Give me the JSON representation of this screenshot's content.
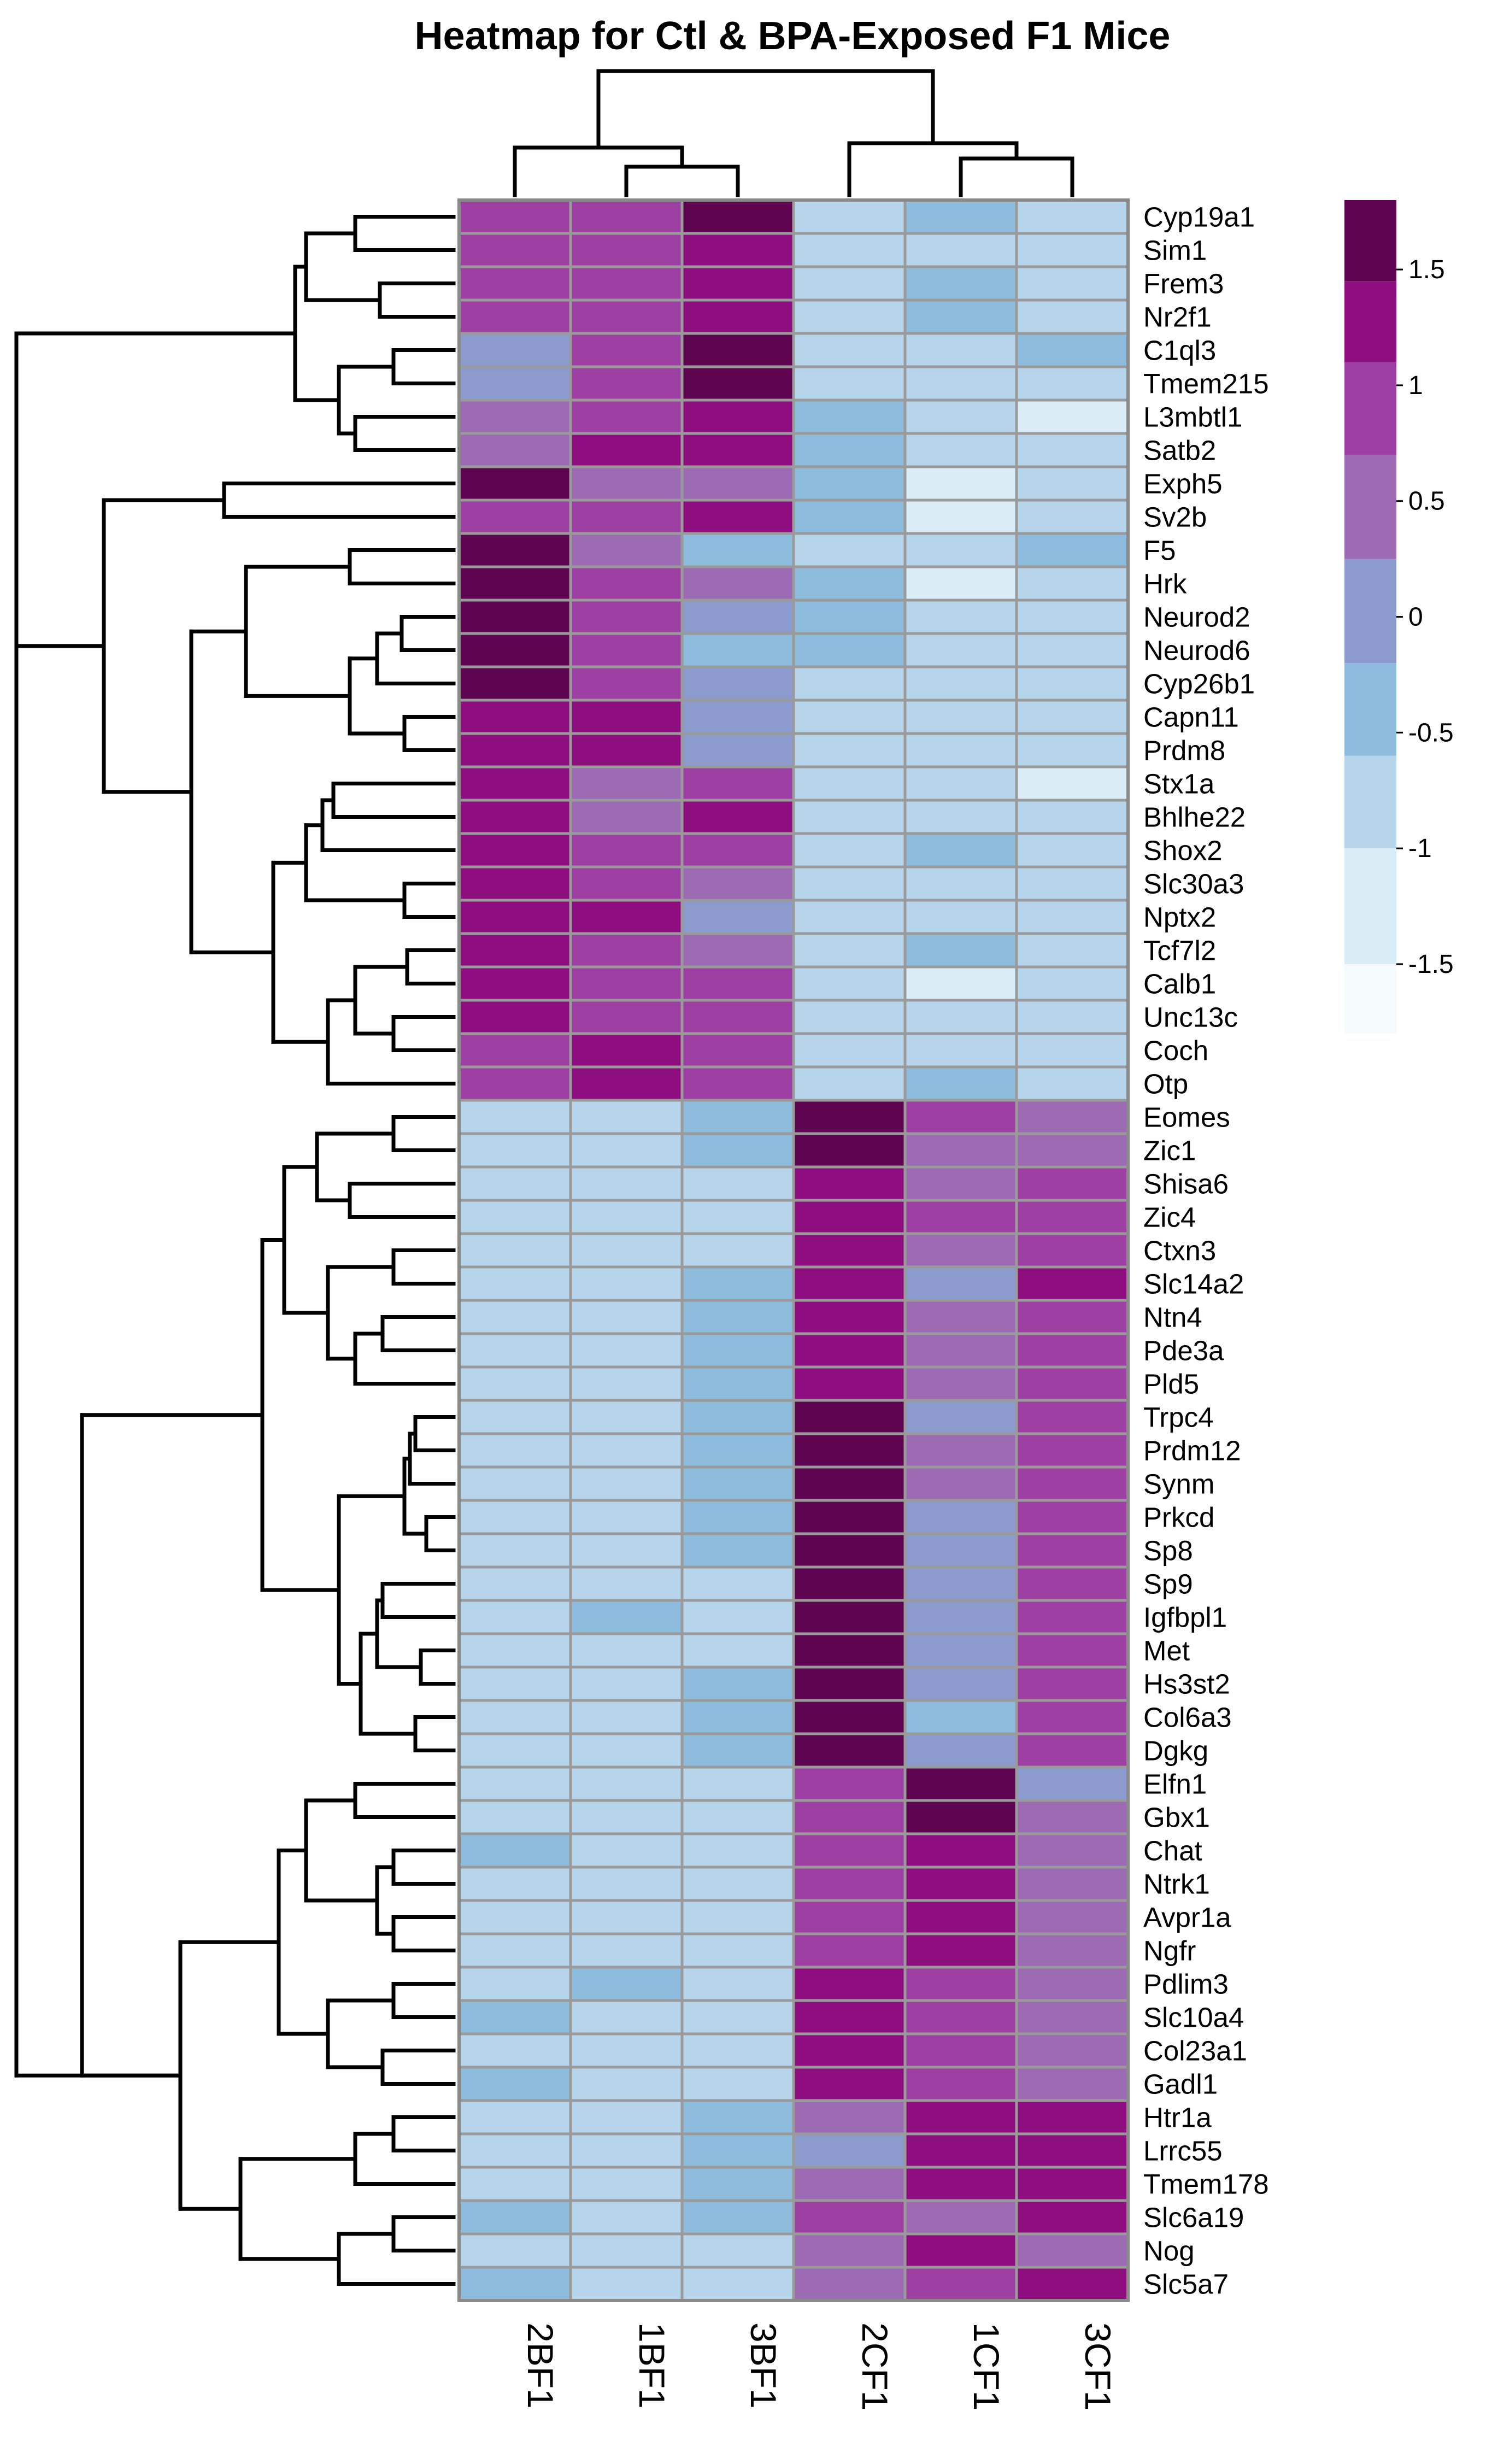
{
  "chart_data": {
    "type": "heatmap",
    "title": "Heatmap for Ctl & BPA-Exposed F1 Mice",
    "columns": [
      "2BF1",
      "1BF1",
      "3BF1",
      "2CF1",
      "1CF1",
      "3CF1"
    ],
    "rows": [
      "Cyp19a1",
      "Sim1",
      "Frem3",
      "Nr2f1",
      "C1ql3",
      "Tmem215",
      "L3mbtl1",
      "Satb2",
      "Exph5",
      "Sv2b",
      "F5",
      "Hrk",
      "Neurod2",
      "Neurod6",
      "Cyp26b1",
      "Capn11",
      "Prdm8",
      "Stx1a",
      "Bhlhe22",
      "Shox2",
      "Slc30a3",
      "Nptx2",
      "Tcf7l2",
      "Calb1",
      "Unc13c",
      "Coch",
      "Otp",
      "Eomes",
      "Zic1",
      "Shisa6",
      "Zic4",
      "Ctxn3",
      "Slc14a2",
      "Ntn4",
      "Pde3a",
      "Pld5",
      "Trpc4",
      "Prdm12",
      "Synm",
      "Prkcd",
      "Sp8",
      "Sp9",
      "Igfbpl1",
      "Met",
      "Hs3st2",
      "Col6a3",
      "Dgkg",
      "Elfn1",
      "Gbx1",
      "Chat",
      "Ntrk1",
      "Avpr1a",
      "Ngfr",
      "Pdlim3",
      "Slc10a4",
      "Col23a1",
      "Gadl1",
      "Htr1a",
      "Lrrc55",
      "Tmem178",
      "Slc6a19",
      "Nog",
      "Slc5a7"
    ],
    "values": [
      [
        1.0,
        0.8,
        1.6,
        -1.0,
        -0.5,
        -0.7
      ],
      [
        1.0,
        0.8,
        1.2,
        -1.0,
        -0.7,
        -0.7
      ],
      [
        1.0,
        0.8,
        1.2,
        -1.0,
        -0.5,
        -0.7
      ],
      [
        1.0,
        0.8,
        1.2,
        -1.0,
        -0.5,
        -0.7
      ],
      [
        0.0,
        0.9,
        1.6,
        -0.9,
        -0.7,
        -0.5
      ],
      [
        0.1,
        0.9,
        1.6,
        -0.7,
        -0.7,
        -0.7
      ],
      [
        0.5,
        0.9,
        1.2,
        -0.5,
        -0.7,
        -1.1
      ],
      [
        0.6,
        1.2,
        1.2,
        -0.5,
        -0.7,
        -0.7
      ],
      [
        1.6,
        0.5,
        0.6,
        -0.5,
        -1.1,
        -0.7
      ],
      [
        1.0,
        0.8,
        1.2,
        -0.5,
        -1.1,
        -0.7
      ],
      [
        1.6,
        0.5,
        -0.4,
        -0.7,
        -0.7,
        -0.5
      ],
      [
        1.6,
        0.9,
        0.5,
        -0.5,
        -1.1,
        -0.7
      ],
      [
        1.6,
        0.9,
        0.1,
        -0.5,
        -0.7,
        -0.7
      ],
      [
        1.6,
        0.9,
        -0.4,
        -0.5,
        -0.7,
        -0.7
      ],
      [
        1.6,
        0.9,
        0.1,
        -0.7,
        -0.7,
        -0.7
      ],
      [
        1.3,
        1.2,
        0.1,
        -0.7,
        -0.7,
        -0.7
      ],
      [
        1.3,
        1.2,
        0.1,
        -0.7,
        -0.7,
        -0.7
      ],
      [
        1.3,
        0.5,
        0.9,
        -0.7,
        -0.7,
        -1.1
      ],
      [
        1.3,
        0.5,
        1.3,
        -1.0,
        -0.7,
        -0.7
      ],
      [
        1.3,
        0.9,
        0.9,
        -1.0,
        -0.5,
        -0.7
      ],
      [
        1.3,
        0.9,
        0.5,
        -0.7,
        -0.7,
        -0.7
      ],
      [
        1.3,
        1.2,
        0.1,
        -1.0,
        -0.7,
        -0.7
      ],
      [
        1.3,
        0.9,
        0.5,
        -1.0,
        -0.5,
        -0.7
      ],
      [
        1.3,
        0.9,
        0.9,
        -0.7,
        -1.1,
        -0.7
      ],
      [
        1.3,
        0.9,
        0.9,
        -0.7,
        -0.7,
        -0.7
      ],
      [
        1.0,
        1.2,
        0.9,
        -1.0,
        -0.7,
        -0.7
      ],
      [
        1.0,
        1.2,
        0.9,
        -1.0,
        -0.5,
        -0.7
      ],
      [
        -1.0,
        -0.7,
        -0.5,
        1.6,
        0.8,
        0.5
      ],
      [
        -1.0,
        -0.7,
        -0.5,
        1.6,
        0.5,
        0.6
      ],
      [
        -1.0,
        -0.7,
        -0.7,
        1.3,
        0.6,
        0.8
      ],
      [
        -0.7,
        -0.7,
        -0.7,
        1.3,
        0.8,
        0.9
      ],
      [
        -0.7,
        -0.7,
        -0.7,
        1.3,
        0.6,
        0.8
      ],
      [
        -0.7,
        -0.7,
        -0.5,
        1.3,
        0.1,
        1.2
      ],
      [
        -1.0,
        -0.7,
        -0.5,
        1.3,
        0.6,
        0.9
      ],
      [
        -1.0,
        -0.7,
        -0.5,
        1.3,
        0.6,
        0.9
      ],
      [
        -1.0,
        -0.7,
        -0.5,
        1.3,
        0.6,
        0.9
      ],
      [
        -1.0,
        -0.7,
        -0.5,
        1.6,
        0.1,
        0.9
      ],
      [
        -1.0,
        -0.7,
        -0.5,
        1.6,
        0.5,
        0.9
      ],
      [
        -1.0,
        -0.7,
        -0.5,
        1.6,
        0.6,
        0.9
      ],
      [
        -1.0,
        -0.7,
        -0.5,
        1.6,
        0.1,
        0.9
      ],
      [
        -1.0,
        -0.7,
        -0.5,
        1.6,
        0.1,
        0.9
      ],
      [
        -0.7,
        -0.7,
        -0.7,
        1.6,
        0.1,
        0.8
      ],
      [
        -0.7,
        -0.5,
        -0.7,
        1.6,
        0.1,
        0.9
      ],
      [
        -0.7,
        -0.7,
        -0.7,
        1.6,
        0.1,
        0.9
      ],
      [
        -1.0,
        -0.7,
        -0.5,
        1.6,
        0.1,
        0.9
      ],
      [
        -1.0,
        -0.7,
        -0.5,
        1.6,
        -0.4,
        0.8
      ],
      [
        -1.0,
        -0.7,
        -0.5,
        1.6,
        0.1,
        0.9
      ],
      [
        -0.7,
        -0.7,
        -0.7,
        0.9,
        1.6,
        0.1
      ],
      [
        -0.7,
        -0.7,
        -0.7,
        0.9,
        1.6,
        0.5
      ],
      [
        -0.5,
        -0.7,
        -1.0,
        0.9,
        1.3,
        0.6
      ],
      [
        -0.7,
        -0.7,
        -1.0,
        0.9,
        1.3,
        0.6
      ],
      [
        -0.7,
        -0.7,
        -1.0,
        0.9,
        1.3,
        0.6
      ],
      [
        -0.7,
        -0.7,
        -1.0,
        0.9,
        1.3,
        0.6
      ],
      [
        -1.0,
        -0.5,
        -1.0,
        1.3,
        0.9,
        0.6
      ],
      [
        -0.5,
        -0.7,
        -1.0,
        1.3,
        0.9,
        0.5
      ],
      [
        -0.7,
        -0.7,
        -1.0,
        1.3,
        0.9,
        0.6
      ],
      [
        -0.5,
        -1.0,
        -1.0,
        1.3,
        0.9,
        0.6
      ],
      [
        -1.0,
        -0.7,
        -0.5,
        0.6,
        1.3,
        1.3
      ],
      [
        -1.0,
        -0.7,
        -0.5,
        0.1,
        1.3,
        1.3
      ],
      [
        -1.0,
        -1.0,
        -0.5,
        0.5,
        1.3,
        1.2
      ],
      [
        -0.5,
        -1.0,
        -0.5,
        0.8,
        0.5,
        1.3
      ],
      [
        -0.7,
        -0.7,
        -1.0,
        0.6,
        1.3,
        0.6
      ],
      [
        -0.5,
        -0.7,
        -1.0,
        0.6,
        0.9,
        1.3
      ]
    ],
    "color_scale": {
      "breaks": [
        -1.8,
        -1.5,
        -1.0,
        -0.6,
        -0.2,
        0.25,
        0.7,
        1.1,
        1.45,
        1.8
      ],
      "colors": [
        "#f5fafc",
        "#daedf6",
        "#b6d5ea",
        "#8dbcdd",
        "#8b9bcd",
        "#9c6bb4",
        "#9e3fa3",
        "#8f0e7f",
        "#5e0450"
      ],
      "legend_ticks": [
        1.5,
        1,
        0.5,
        0,
        -0.5,
        -1,
        -1.5
      ],
      "legend_tick_labels": [
        "1.5",
        "1",
        "0.5",
        "0",
        "-0.5",
        "-1",
        "-1.5"
      ]
    }
  }
}
